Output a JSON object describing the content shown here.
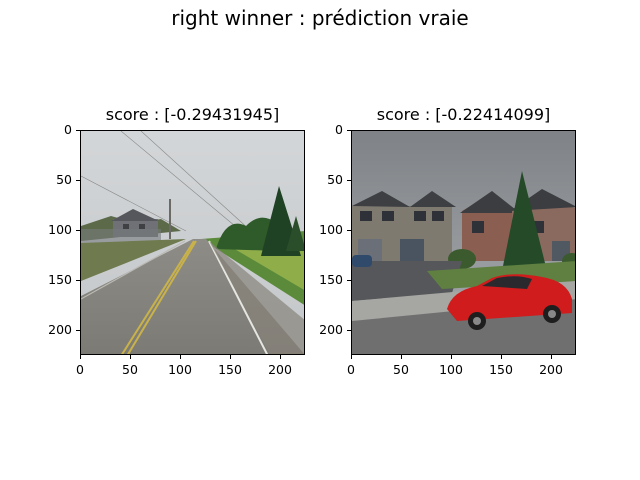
{
  "figure": {
    "suptitle": "right winner : prédiction vraie"
  },
  "panels": [
    {
      "title": "score : [-0.29431945]",
      "image": "street-view-road",
      "xticks": [
        "0",
        "50",
        "100",
        "150",
        "200"
      ],
      "yticks": [
        "0",
        "50",
        "100",
        "150",
        "200"
      ]
    },
    {
      "title": "score : [-0.22414099]",
      "image": "street-view-houses-red-car",
      "xticks": [
        "0",
        "50",
        "100",
        "150",
        "200"
      ],
      "yticks": [
        "0",
        "50",
        "100",
        "150",
        "200"
      ]
    }
  ]
}
